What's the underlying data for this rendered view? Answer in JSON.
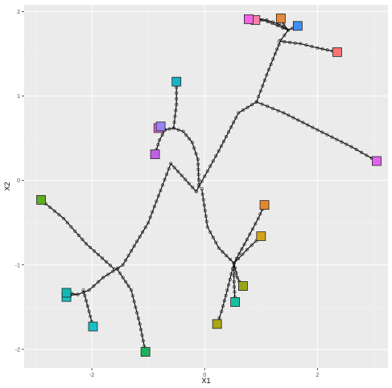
{
  "chart_data": {
    "type": "scatter",
    "title": "",
    "xlabel": "X1",
    "ylabel": "X2",
    "xlim": [
      -3.2,
      3.25
    ],
    "ylim": [
      -2.22,
      2.08
    ],
    "x_ticks": [
      -2,
      0,
      2
    ],
    "y_ticks": [
      -2,
      -1,
      0,
      1,
      2
    ],
    "grid": true,
    "legend": "none",
    "background": "#ebebeb",
    "grid_major": "#ffffff",
    "grid_minor": "#f4f4f4",
    "trajectory_color": "#000000",
    "trajectories": [
      {
        "points": [
          [
            -0.15,
            -0.13
          ],
          [
            0.25,
            0.35
          ],
          [
            0.6,
            0.8
          ],
          [
            0.92,
            0.93
          ],
          [
            1.1,
            1.25
          ],
          [
            1.25,
            1.5
          ],
          [
            1.35,
            1.66
          ],
          [
            1.48,
            1.78
          ]
        ],
        "end": "trunk"
      },
      {
        "points": [
          [
            1.48,
            1.78
          ],
          [
            1.32,
            1.85
          ],
          [
            1.1,
            1.9
          ],
          [
            0.9,
            1.9
          ]
        ],
        "end": "#f77fa6"
      },
      {
        "points": [
          [
            1.48,
            1.78
          ],
          [
            1.2,
            1.86
          ],
          [
            0.95,
            1.92
          ],
          [
            0.78,
            1.91
          ]
        ],
        "end": "#f564e3"
      },
      {
        "points": [
          [
            1.48,
            1.78
          ],
          [
            1.4,
            1.85
          ],
          [
            1.35,
            1.92
          ]
        ],
        "end": "#e58a3c"
      },
      {
        "points": [
          [
            1.48,
            1.78
          ],
          [
            1.55,
            1.8
          ],
          [
            1.65,
            1.83
          ]
        ],
        "end": "#3f8ff2"
      },
      {
        "points": [
          [
            1.32,
            1.65
          ],
          [
            1.7,
            1.62
          ],
          [
            2.0,
            1.57
          ],
          [
            2.35,
            1.52
          ]
        ],
        "end": "#f87474"
      },
      {
        "points": [
          [
            0.92,
            0.93
          ],
          [
            1.4,
            0.8
          ],
          [
            2.0,
            0.6
          ],
          [
            2.6,
            0.4
          ],
          [
            3.05,
            0.23
          ]
        ],
        "end": "#e264ea"
      },
      {
        "points": [
          [
            -0.15,
            -0.13
          ],
          [
            -0.6,
            0.2
          ],
          [
            -1.0,
            -0.5
          ],
          [
            -1.45,
            -1.0
          ],
          [
            -1.8,
            -1.15
          ],
          [
            -2.05,
            -1.3
          ],
          [
            -2.25,
            -1.35
          ]
        ],
        "end": "trunk"
      },
      {
        "points": [
          [
            -2.25,
            -1.35
          ],
          [
            -2.38,
            -1.36
          ],
          [
            -2.45,
            -1.38
          ]
        ],
        "end": "#17c1c3"
      },
      {
        "points": [
          [
            -2.25,
            -1.35
          ],
          [
            -2.35,
            -1.34
          ],
          [
            -2.45,
            -1.33
          ]
        ],
        "end": "#12b9b2"
      },
      {
        "points": [
          [
            -2.15,
            -1.3
          ],
          [
            -2.05,
            -1.55
          ],
          [
            -1.98,
            -1.73
          ]
        ],
        "end": "#19bfc7"
      },
      {
        "points": [
          [
            -1.55,
            -1.05
          ],
          [
            -1.3,
            -1.3
          ],
          [
            -1.15,
            -1.7
          ],
          [
            -1.05,
            -2.03
          ]
        ],
        "end": "#1db25f"
      },
      {
        "points": [
          [
            -1.6,
            -1.05
          ],
          [
            -2.1,
            -0.75
          ],
          [
            -2.5,
            -0.45
          ],
          [
            -2.9,
            -0.23
          ]
        ],
        "end": "#5fae20"
      },
      {
        "points": [
          [
            -0.1,
            -0.05
          ],
          [
            -0.12,
            0.25
          ],
          [
            -0.22,
            0.45
          ],
          [
            -0.38,
            0.58
          ],
          [
            -0.55,
            0.62
          ],
          [
            -0.7,
            0.6
          ]
        ],
        "end": "trunk"
      },
      {
        "points": [
          [
            -0.7,
            0.6
          ],
          [
            -0.78,
            0.62
          ],
          [
            -0.82,
            0.62
          ]
        ],
        "end": "#f068d5"
      },
      {
        "points": [
          [
            -0.7,
            0.6
          ],
          [
            -0.73,
            0.63
          ],
          [
            -0.78,
            0.64
          ]
        ],
        "end": "#9a82f0"
      },
      {
        "points": [
          [
            -0.7,
            0.6
          ],
          [
            -0.8,
            0.48
          ],
          [
            -0.88,
            0.31
          ]
        ],
        "end": "#c060e6"
      },
      {
        "points": [
          [
            -0.55,
            0.62
          ],
          [
            -0.5,
            0.9
          ],
          [
            -0.5,
            1.17
          ]
        ],
        "end": "#19b1c4"
      },
      {
        "points": [
          [
            -0.05,
            -0.1
          ],
          [
            0.05,
            -0.55
          ],
          [
            0.25,
            -0.8
          ],
          [
            0.52,
            -0.98
          ]
        ],
        "end": "trunk"
      },
      {
        "points": [
          [
            0.52,
            -0.98
          ],
          [
            0.75,
            -0.7
          ],
          [
            0.95,
            -0.45
          ],
          [
            1.06,
            -0.29
          ]
        ],
        "end": "#e38a2e"
      },
      {
        "points": [
          [
            0.52,
            -0.98
          ],
          [
            0.75,
            -0.82
          ],
          [
            1.0,
            -0.66
          ]
        ],
        "end": "#d4a21c"
      },
      {
        "points": [
          [
            0.52,
            -0.98
          ],
          [
            0.58,
            -1.15
          ],
          [
            0.65,
            -1.24
          ],
          [
            0.68,
            -1.25
          ]
        ],
        "end": "#9aa419"
      },
      {
        "points": [
          [
            0.52,
            -0.98
          ],
          [
            0.52,
            -1.2
          ],
          [
            0.54,
            -1.44
          ]
        ],
        "end": "#18c0a0"
      },
      {
        "points": [
          [
            0.52,
            -0.98
          ],
          [
            0.4,
            -1.3
          ],
          [
            0.3,
            -1.55
          ],
          [
            0.22,
            -1.7
          ]
        ],
        "end": "#aaa617"
      }
    ]
  }
}
